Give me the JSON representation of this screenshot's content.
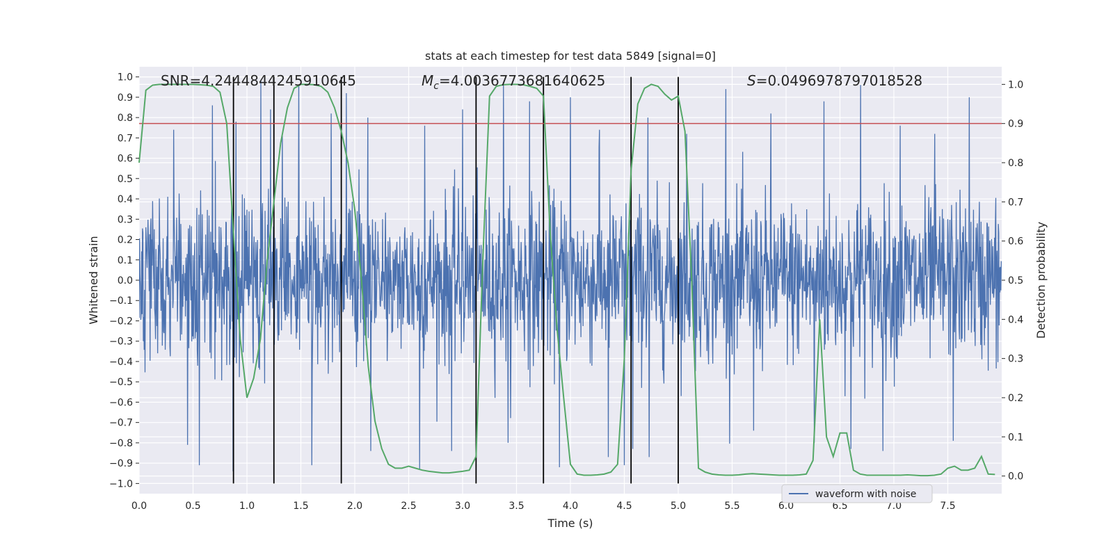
{
  "chart_data": {
    "type": "line",
    "title": "stats at each timestep for test data 5849 [signal=0]",
    "xlabel": "Time (s)",
    "ylabel": "Whitened strain",
    "y2label": "Detection probability",
    "xlim": [
      0.0,
      8.0
    ],
    "ylim": [
      -1.05,
      1.05
    ],
    "y2lim": [
      -0.045,
      1.045
    ],
    "x_ticks": [
      "0.0",
      "0.5",
      "1.0",
      "1.5",
      "2.0",
      "2.5",
      "3.0",
      "3.5",
      "4.0",
      "4.5",
      "5.0",
      "5.5",
      "6.0",
      "6.5",
      "7.0",
      "7.5"
    ],
    "y_ticks": [
      "1.0",
      "0.9",
      "0.8",
      "0.7",
      "0.6",
      "0.5",
      "0.4",
      "0.3",
      "0.2",
      "0.1",
      "0.0",
      "−0.1",
      "−0.2",
      "−0.3",
      "−0.4",
      "−0.5",
      "−0.6",
      "−0.7",
      "−0.8",
      "−0.9",
      "−1.0"
    ],
    "y2_ticks": [
      "1.0",
      "0.9",
      "0.8",
      "0.7",
      "0.6",
      "0.5",
      "0.4",
      "0.3",
      "0.2",
      "0.1",
      "0.0"
    ],
    "grid": true,
    "legend_position": "lower-right",
    "background_color": "#eaeaf2",
    "annotations": {
      "snr": "SNR=4.2444844245910645",
      "mc_symbol": "M",
      "mc_sub": "c",
      "mc_value": "=4.0036773681640625",
      "s_symbol": "S",
      "s_value": "=0.0496978797018528"
    },
    "threshold": {
      "value": 0.9,
      "axis": "y2",
      "color": "#c44e52"
    },
    "vertical_lines": [
      0.875,
      1.25,
      1.875,
      3.125,
      3.75,
      4.5625,
      5.0
    ],
    "vertical_line_color": "#000000",
    "series": [
      {
        "name": "waveform with noise",
        "color": "#4c72b0",
        "axis": "y",
        "kind": "noise-trace",
        "sample_rate_hz": 256,
        "peak_markers_x": [
          0.32,
          0.68,
          0.9,
          1.13,
          1.22,
          1.33,
          1.48,
          1.78,
          1.92,
          2.12,
          2.65,
          3.0,
          3.38,
          3.62,
          4.0,
          4.27,
          4.72,
          5.08,
          5.44,
          5.86,
          6.35,
          6.69,
          7.06,
          7.38,
          7.7
        ],
        "peak_markers_y": [
          0.74,
          0.86,
          0.78,
          0.98,
          0.84,
          0.72,
          0.96,
          0.82,
          0.92,
          0.8,
          0.76,
          0.84,
          0.96,
          0.88,
          0.9,
          0.74,
          0.8,
          0.72,
          0.94,
          0.82,
          0.88,
          0.96,
          0.76,
          0.72,
          0.9
        ],
        "trough_markers_x": [
          0.45,
          0.56,
          0.87,
          1.6,
          2.15,
          2.6,
          2.9,
          3.42,
          3.9,
          4.35,
          4.5,
          4.58,
          4.73,
          5.7,
          6.26,
          6.6,
          6.9,
          7.55
        ],
        "trough_markers_y": [
          -0.81,
          -0.91,
          -0.94,
          -0.91,
          -0.84,
          -0.93,
          -0.84,
          -0.8,
          -0.92,
          -0.87,
          -0.91,
          -0.83,
          -0.87,
          -0.74,
          -0.8,
          -0.83,
          -0.84,
          -0.79
        ]
      },
      {
        "name": "",
        "color": "#55a868",
        "axis": "y2",
        "kind": "line",
        "x": [
          0.0,
          0.0625,
          0.125,
          0.1875,
          0.25,
          0.3125,
          0.375,
          0.4375,
          0.5,
          0.5625,
          0.625,
          0.6875,
          0.75,
          0.8125,
          0.875,
          0.9375,
          1.0,
          1.0625,
          1.125,
          1.1875,
          1.25,
          1.3125,
          1.375,
          1.4375,
          1.5,
          1.5625,
          1.625,
          1.6875,
          1.75,
          1.8125,
          1.875,
          1.9375,
          2.0,
          2.0625,
          2.125,
          2.1875,
          2.25,
          2.3125,
          2.375,
          2.4375,
          2.5,
          2.5625,
          2.625,
          2.6875,
          2.75,
          2.8125,
          2.875,
          2.9375,
          3.0,
          3.0625,
          3.125,
          3.1875,
          3.25,
          3.3125,
          3.375,
          3.4375,
          3.5,
          3.5625,
          3.625,
          3.6875,
          3.75,
          3.8125,
          3.875,
          3.9375,
          4.0,
          4.0625,
          4.125,
          4.1875,
          4.25,
          4.3125,
          4.375,
          4.4375,
          4.5,
          4.5625,
          4.625,
          4.6875,
          4.75,
          4.8125,
          4.875,
          4.9375,
          5.0,
          5.0625,
          5.125,
          5.1875,
          5.25,
          5.3125,
          5.375,
          5.4375,
          5.5,
          5.5625,
          5.625,
          5.6875,
          5.75,
          5.8125,
          5.875,
          5.9375,
          6.0,
          6.0625,
          6.125,
          6.1875,
          6.25,
          6.3125,
          6.375,
          6.4375,
          6.5,
          6.5625,
          6.625,
          6.6875,
          6.75,
          6.8125,
          6.875,
          6.9375,
          7.0,
          7.0625,
          7.125,
          7.1875,
          7.25,
          7.3125,
          7.375,
          7.4375,
          7.5,
          7.5625,
          7.625,
          7.6875,
          7.75,
          7.8125,
          7.875,
          7.9375
        ],
        "y": [
          0.8,
          0.985,
          0.998,
          1.0,
          1.0,
          1.0,
          1.0,
          1.0,
          1.0,
          0.999,
          0.998,
          0.995,
          0.98,
          0.9,
          0.62,
          0.35,
          0.2,
          0.25,
          0.35,
          0.55,
          0.7,
          0.85,
          0.94,
          0.99,
          1.0,
          1.0,
          0.999,
          0.995,
          0.98,
          0.94,
          0.88,
          0.8,
          0.68,
          0.5,
          0.28,
          0.14,
          0.07,
          0.03,
          0.02,
          0.02,
          0.025,
          0.02,
          0.015,
          0.012,
          0.01,
          0.008,
          0.008,
          0.01,
          0.012,
          0.015,
          0.05,
          0.55,
          0.97,
          0.995,
          0.999,
          1.0,
          1.0,
          0.999,
          0.995,
          0.99,
          0.97,
          0.62,
          0.38,
          0.2,
          0.03,
          0.005,
          0.002,
          0.002,
          0.003,
          0.005,
          0.01,
          0.03,
          0.3,
          0.78,
          0.95,
          0.99,
          1.0,
          0.995,
          0.975,
          0.96,
          0.97,
          0.88,
          0.5,
          0.02,
          0.01,
          0.005,
          0.003,
          0.002,
          0.002,
          0.003,
          0.005,
          0.006,
          0.005,
          0.004,
          0.003,
          0.002,
          0.002,
          0.002,
          0.003,
          0.005,
          0.04,
          0.4,
          0.1,
          0.05,
          0.11,
          0.11,
          0.015,
          0.005,
          0.002,
          0.002,
          0.002,
          0.002,
          0.002,
          0.002,
          0.003,
          0.002,
          0.001,
          0.001,
          0.002,
          0.005,
          0.02,
          0.025,
          0.015,
          0.015,
          0.02,
          0.05,
          0.005,
          0.004
        ]
      }
    ]
  }
}
